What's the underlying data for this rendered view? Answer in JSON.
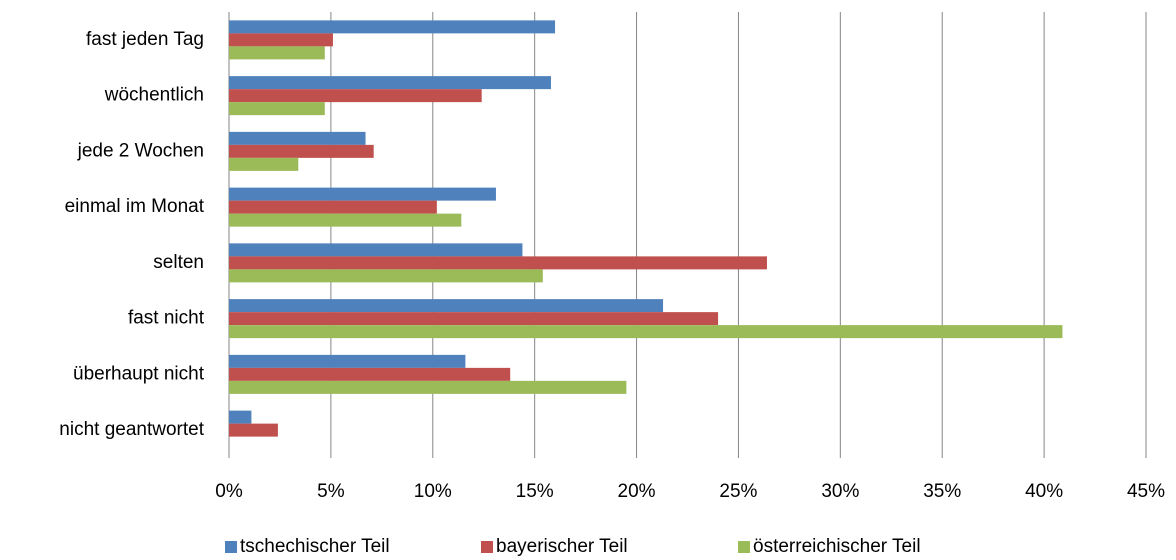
{
  "chart_data": {
    "type": "hbar",
    "categories": [
      "fast jeden Tag",
      "wöchentlich",
      "jede 2 Wochen",
      "einmal im Monat",
      "selten",
      "fast nicht",
      "überhaupt nicht",
      "nicht geantwortet"
    ],
    "series": [
      {
        "name": "tschechischer Teil",
        "color": "#4f81bd",
        "values": [
          16.0,
          15.8,
          6.7,
          13.1,
          14.4,
          21.3,
          11.6,
          1.1
        ]
      },
      {
        "name": "bayerischer Teil",
        "color": "#c0504d",
        "values": [
          5.1,
          12.4,
          7.1,
          10.2,
          26.4,
          24.0,
          13.8,
          2.4
        ]
      },
      {
        "name": "österreichischer Teil",
        "color": "#9bbb59",
        "values": [
          4.7,
          4.7,
          3.4,
          11.4,
          15.4,
          40.9,
          19.5,
          null
        ]
      }
    ],
    "xlim": [
      0,
      45
    ],
    "xticks": [
      {
        "value": 0,
        "label": "0%"
      },
      {
        "value": 5,
        "label": "5%"
      },
      {
        "value": 10,
        "label": "10%"
      },
      {
        "value": 15,
        "label": "15%"
      },
      {
        "value": 20,
        "label": "20%"
      },
      {
        "value": 25,
        "label": "25%"
      },
      {
        "value": 30,
        "label": "30%"
      },
      {
        "value": 35,
        "label": "35%"
      },
      {
        "value": 40,
        "label": "40%"
      },
      {
        "value": 45,
        "label": "45%"
      }
    ],
    "grid": true,
    "legend": "bottom"
  }
}
